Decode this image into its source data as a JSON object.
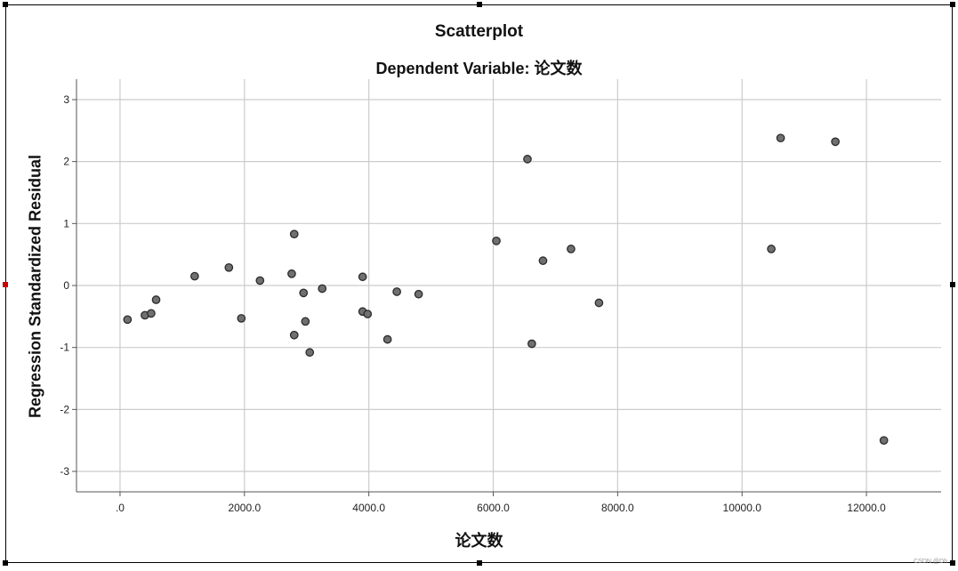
{
  "chart_data": {
    "type": "scatter",
    "title": "Scatterplot",
    "subtitle": "Dependent Variable: 论文数",
    "xlabel": "论文数",
    "ylabel": "Regression Standardized Residual",
    "xlim": [
      -700,
      13200
    ],
    "ylim": [
      -3.33,
      3.33
    ],
    "x_ticks": [
      0,
      2000,
      4000,
      6000,
      8000,
      10000,
      12000
    ],
    "x_tick_labels": [
      ".0",
      "2000.0",
      "4000.0",
      "6000.0",
      "8000.0",
      "10000.0",
      "12000.0"
    ],
    "y_ticks": [
      3,
      2,
      1,
      0,
      -1,
      -2,
      -3
    ],
    "y_tick_labels": [
      "3",
      "2",
      "1",
      "0",
      "-1",
      "-2",
      "-3"
    ],
    "grid": true,
    "points": [
      {
        "x": 120,
        "y": -0.55
      },
      {
        "x": 400,
        "y": -0.48
      },
      {
        "x": 500,
        "y": -0.45
      },
      {
        "x": 580,
        "y": -0.23
      },
      {
        "x": 1200,
        "y": 0.15
      },
      {
        "x": 1750,
        "y": 0.29
      },
      {
        "x": 1950,
        "y": -0.53
      },
      {
        "x": 2250,
        "y": 0.08
      },
      {
        "x": 2760,
        "y": 0.19
      },
      {
        "x": 2800,
        "y": 0.83
      },
      {
        "x": 2800,
        "y": -0.8
      },
      {
        "x": 2950,
        "y": -0.12
      },
      {
        "x": 2980,
        "y": -0.58
      },
      {
        "x": 3050,
        "y": -1.08
      },
      {
        "x": 3250,
        "y": -0.05
      },
      {
        "x": 3900,
        "y": 0.14
      },
      {
        "x": 3900,
        "y": -0.42
      },
      {
        "x": 3980,
        "y": -0.46
      },
      {
        "x": 4300,
        "y": -0.87
      },
      {
        "x": 4450,
        "y": -0.1
      },
      {
        "x": 4800,
        "y": -0.14
      },
      {
        "x": 6050,
        "y": 0.72
      },
      {
        "x": 6550,
        "y": 2.04
      },
      {
        "x": 6620,
        "y": -0.94
      },
      {
        "x": 6800,
        "y": 0.4
      },
      {
        "x": 7250,
        "y": 0.59
      },
      {
        "x": 7700,
        "y": -0.28
      },
      {
        "x": 10470,
        "y": 0.59
      },
      {
        "x": 10620,
        "y": 2.38
      },
      {
        "x": 11500,
        "y": 2.32
      },
      {
        "x": 12280,
        "y": -2.5
      }
    ]
  },
  "watermark": "CSDN @Dh"
}
